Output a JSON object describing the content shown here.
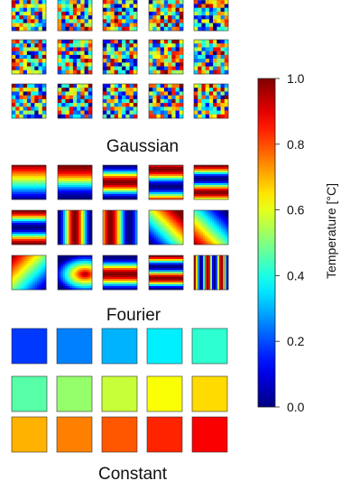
{
  "chart_data": {
    "type": "heatmap",
    "colormap": "jet",
    "colorbar": {
      "label": "Temperature [°C]",
      "min": 0.0,
      "max": 1.0,
      "ticks": [
        "0.0",
        "0.2",
        "0.4",
        "0.6",
        "0.8",
        "1.0"
      ]
    },
    "panels": [
      {
        "title": "Gaussian",
        "kind": "random-noise",
        "grid_cells": 9,
        "rows": 3,
        "cols": 5
      },
      {
        "title": "Fourier",
        "kind": "smooth-modes",
        "rows": 3,
        "cols": 5,
        "patterns": [
          [
            "vertical-rainbow-down",
            "vertical-rainbow-up",
            "horizontal-band-red",
            "vertical-band-mixed",
            "vertical-rainbow-steep"
          ],
          [
            "horizontal-red-blue-stripes",
            "vertical-stripes-red-center",
            "vertical-stripes-yellow",
            "diagonal-up",
            "diagonal-blue-corner"
          ],
          [
            "diagonal-red-corner",
            "radial-red-right",
            "horizontal-red-band-narrow",
            "horizontal-multi-band",
            "vertical-many-stripes"
          ]
        ]
      },
      {
        "title": "Constant",
        "kind": "uniform",
        "rows": 3,
        "cols": 5,
        "values": [
          [
            0.18,
            0.25,
            0.3,
            0.36,
            0.42
          ],
          [
            0.46,
            0.52,
            0.57,
            0.62,
            0.66
          ],
          [
            0.7,
            0.75,
            0.79,
            0.84,
            0.88
          ]
        ]
      }
    ]
  }
}
